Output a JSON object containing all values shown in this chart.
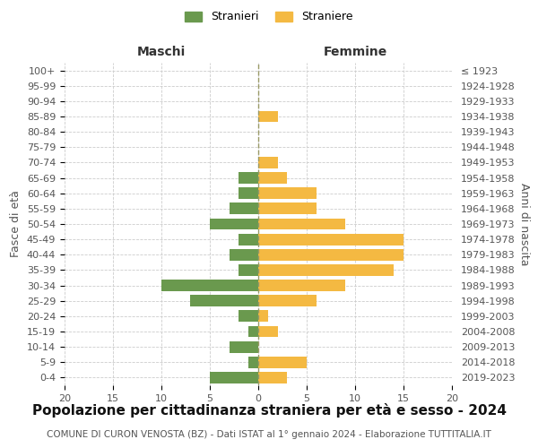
{
  "age_groups": [
    "0-4",
    "5-9",
    "10-14",
    "15-19",
    "20-24",
    "25-29",
    "30-34",
    "35-39",
    "40-44",
    "45-49",
    "50-54",
    "55-59",
    "60-64",
    "65-69",
    "70-74",
    "75-79",
    "80-84",
    "85-89",
    "90-94",
    "95-99",
    "100+"
  ],
  "birth_years": [
    "2019-2023",
    "2014-2018",
    "2009-2013",
    "2004-2008",
    "1999-2003",
    "1994-1998",
    "1989-1993",
    "1984-1988",
    "1979-1983",
    "1974-1978",
    "1969-1973",
    "1964-1968",
    "1959-1963",
    "1954-1958",
    "1949-1953",
    "1944-1948",
    "1939-1943",
    "1934-1938",
    "1929-1933",
    "1924-1928",
    "≤ 1923"
  ],
  "males": [
    5,
    1,
    3,
    1,
    2,
    7,
    10,
    2,
    3,
    2,
    5,
    3,
    2,
    2,
    0,
    0,
    0,
    0,
    0,
    0,
    0
  ],
  "females": [
    3,
    5,
    0,
    2,
    1,
    6,
    9,
    14,
    15,
    15,
    9,
    6,
    6,
    3,
    2,
    0,
    0,
    2,
    0,
    0,
    0
  ],
  "male_color": "#6a994e",
  "female_color": "#f4b942",
  "bar_height": 0.75,
  "xlim": 20,
  "title": "Popolazione per cittadinanza straniera per età e sesso - 2024",
  "subtitle": "COMUNE DI CURON VENOSTA (BZ) - Dati ISTAT al 1° gennaio 2024 - Elaborazione TUTTITALIA.IT",
  "legend_male": "Stranieri",
  "legend_female": "Straniere",
  "xlabel_left": "Maschi",
  "xlabel_right": "Femmine",
  "ylabel_left": "Fasce di età",
  "ylabel_right": "Anni di nascita",
  "background_color": "#ffffff",
  "grid_color": "#cccccc",
  "title_fontsize": 11,
  "subtitle_fontsize": 7.5,
  "tick_fontsize": 8,
  "label_fontsize": 9
}
